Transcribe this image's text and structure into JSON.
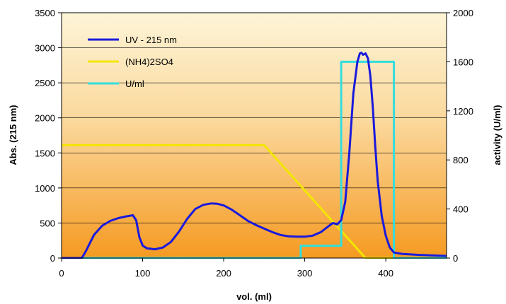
{
  "chart_data": {
    "type": "line",
    "title": "",
    "xlabel": "vol. (ml)",
    "ylabel": "Abs. (215 nm)",
    "y2label": "activity (U/ml)",
    "xlim": [
      0,
      475
    ],
    "ylim": [
      0,
      3500
    ],
    "y2lim": [
      0,
      2000
    ],
    "xticks": [
      0,
      100,
      200,
      300,
      400
    ],
    "yticks": [
      0,
      500,
      1000,
      1500,
      2000,
      2500,
      3000,
      3500
    ],
    "y2ticks": [
      0,
      400,
      800,
      1200,
      1600,
      2000
    ],
    "grid": "horizontal",
    "background": "vertical gradient, pale yellow (top) to orange (bottom)",
    "legend_position": "top-left",
    "series": [
      {
        "name": "UV - 215 nm",
        "axis": "left",
        "color": "#1a1adc",
        "x": [
          0,
          25,
          30,
          40,
          50,
          60,
          70,
          80,
          88,
          92,
          96,
          100,
          105,
          115,
          125,
          135,
          145,
          155,
          165,
          175,
          185,
          192,
          200,
          210,
          220,
          230,
          240,
          250,
          260,
          270,
          280,
          290,
          300,
          310,
          320,
          330,
          335,
          340,
          345,
          350,
          355,
          360,
          365,
          368,
          370,
          372,
          375,
          378,
          381,
          384,
          387,
          390,
          395,
          400,
          405,
          410,
          420,
          440,
          475
        ],
        "y": [
          0,
          0,
          100,
          330,
          460,
          530,
          570,
          595,
          610,
          540,
          300,
          180,
          140,
          125,
          150,
          230,
          380,
          560,
          700,
          760,
          780,
          775,
          750,
          690,
          610,
          530,
          470,
          420,
          370,
          330,
          310,
          305,
          305,
          320,
          370,
          460,
          500,
          480,
          540,
          800,
          1500,
          2350,
          2800,
          2920,
          2930,
          2900,
          2920,
          2850,
          2600,
          2150,
          1600,
          1100,
          600,
          320,
          150,
          80,
          60,
          45,
          30
        ]
      },
      {
        "name": "(NH4)2SO4",
        "axis": "left",
        "color": "#f2e600",
        "x": [
          0,
          250,
          375,
          475
        ],
        "y": [
          1610,
          1610,
          0,
          0
        ]
      },
      {
        "name": "U/ml",
        "axis": "right",
        "color": "#33dddd",
        "x": [
          0,
          295,
          295,
          345,
          345,
          410,
          410,
          475
        ],
        "y": [
          0,
          0,
          100,
          100,
          1600,
          1600,
          0,
          0
        ]
      }
    ]
  }
}
